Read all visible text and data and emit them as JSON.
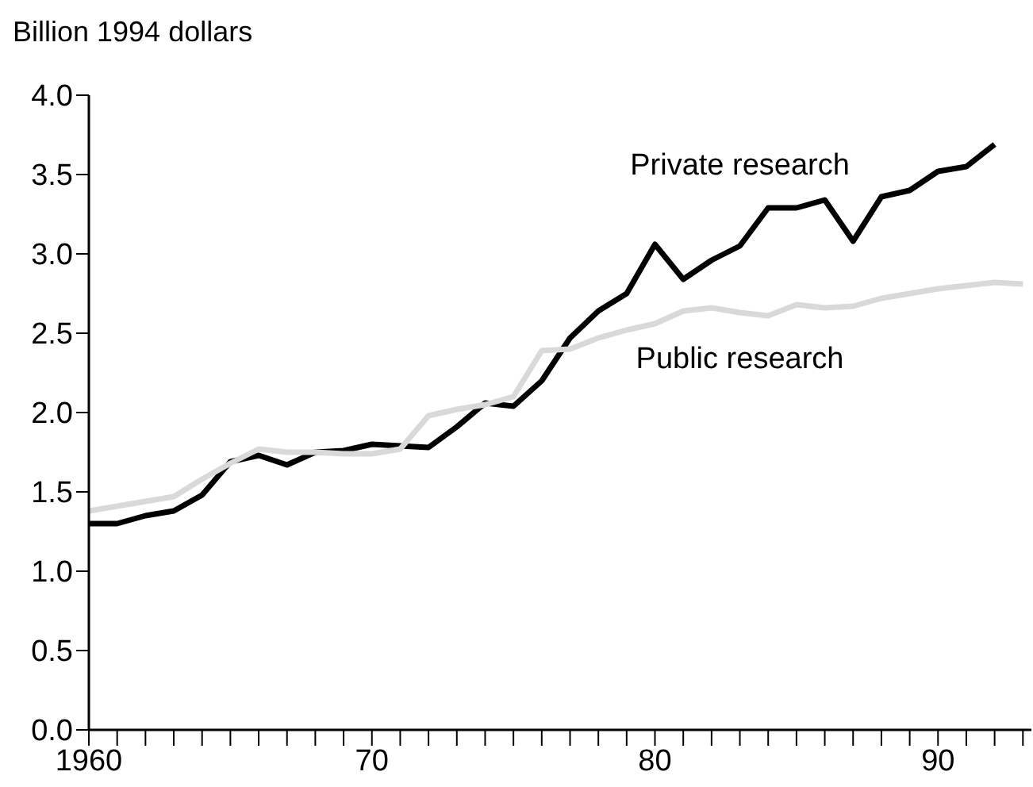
{
  "chart_data": {
    "type": "line",
    "ylabel": "Billion 1994 dollars",
    "x": [
      1960,
      1961,
      1962,
      1963,
      1964,
      1965,
      1966,
      1967,
      1968,
      1969,
      1970,
      1971,
      1972,
      1973,
      1974,
      1975,
      1976,
      1977,
      1978,
      1979,
      1980,
      1981,
      1982,
      1983,
      1984,
      1985,
      1986,
      1987,
      1988,
      1989,
      1990,
      1991,
      1992,
      1993
    ],
    "series": [
      {
        "name": "Private research",
        "color": "#000000",
        "values": [
          1.3,
          1.3,
          1.35,
          1.38,
          1.48,
          1.69,
          1.73,
          1.67,
          1.75,
          1.76,
          1.8,
          1.79,
          1.78,
          1.91,
          2.06,
          2.04,
          2.2,
          2.47,
          2.64,
          2.75,
          3.06,
          2.84,
          2.96,
          3.05,
          3.29,
          3.29,
          3.34,
          3.08,
          3.36,
          3.4,
          3.52,
          3.55,
          3.69,
          null
        ]
      },
      {
        "name": "Public research",
        "color": "#d9d9d9",
        "values": [
          1.38,
          1.41,
          1.44,
          1.47,
          1.58,
          1.68,
          1.77,
          1.75,
          1.75,
          1.74,
          1.74,
          1.77,
          1.98,
          2.02,
          2.05,
          2.1,
          2.39,
          2.4,
          2.47,
          2.52,
          2.56,
          2.64,
          2.66,
          2.63,
          2.61,
          2.68,
          2.66,
          2.67,
          2.72,
          2.75,
          2.78,
          2.8,
          2.82,
          2.81
        ]
      }
    ],
    "xlim": [
      1960,
      1993.3
    ],
    "xticks": [
      1960,
      {
        "value": 1961,
        "label": null
      },
      {
        "value": 1962,
        "label": null
      },
      {
        "value": 1963,
        "label": null
      },
      {
        "value": 1964,
        "label": null
      },
      {
        "value": 1965,
        "label": null
      },
      {
        "value": 1966,
        "label": null
      },
      {
        "value": 1967,
        "label": null
      },
      {
        "value": 1968,
        "label": null
      },
      {
        "value": 1969,
        "label": null
      },
      {
        "value": 1970,
        "label": "70"
      },
      {
        "value": 1971,
        "label": null
      },
      {
        "value": 1972,
        "label": null
      },
      {
        "value": 1973,
        "label": null
      },
      {
        "value": 1974,
        "label": null
      },
      {
        "value": 1975,
        "label": null
      },
      {
        "value": 1976,
        "label": null
      },
      {
        "value": 1977,
        "label": null
      },
      {
        "value": 1978,
        "label": null
      },
      {
        "value": 1979,
        "label": null
      },
      {
        "value": 1980,
        "label": "80"
      },
      {
        "value": 1981,
        "label": null
      },
      {
        "value": 1982,
        "label": null
      },
      {
        "value": 1983,
        "label": null
      },
      {
        "value": 1984,
        "label": null
      },
      {
        "value": 1985,
        "label": null
      },
      {
        "value": 1986,
        "label": null
      },
      {
        "value": 1987,
        "label": null
      },
      {
        "value": 1988,
        "label": null
      },
      {
        "value": 1989,
        "label": null
      },
      {
        "value": 1990,
        "label": "90"
      },
      {
        "value": 1991,
        "label": null
      },
      {
        "value": 1992,
        "label": null
      },
      {
        "value": 1993,
        "label": null
      }
    ],
    "ylim": [
      0,
      4
    ],
    "yticks": [
      {
        "value": 0,
        "label": "0.0"
      },
      {
        "value": 0.5,
        "label": "0.5"
      },
      {
        "value": 1,
        "label": "1.0"
      },
      {
        "value": 1.5,
        "label": "1.5"
      },
      {
        "value": 2,
        "label": "2.0"
      },
      {
        "value": 2.5,
        "label": "2.5"
      },
      {
        "value": 3,
        "label": "3.0"
      },
      {
        "value": 3.5,
        "label": "3.5"
      },
      {
        "value": 4,
        "label": "4.0"
      }
    ],
    "grid": false,
    "legend": false,
    "marker": "none",
    "line_style": "solid"
  }
}
